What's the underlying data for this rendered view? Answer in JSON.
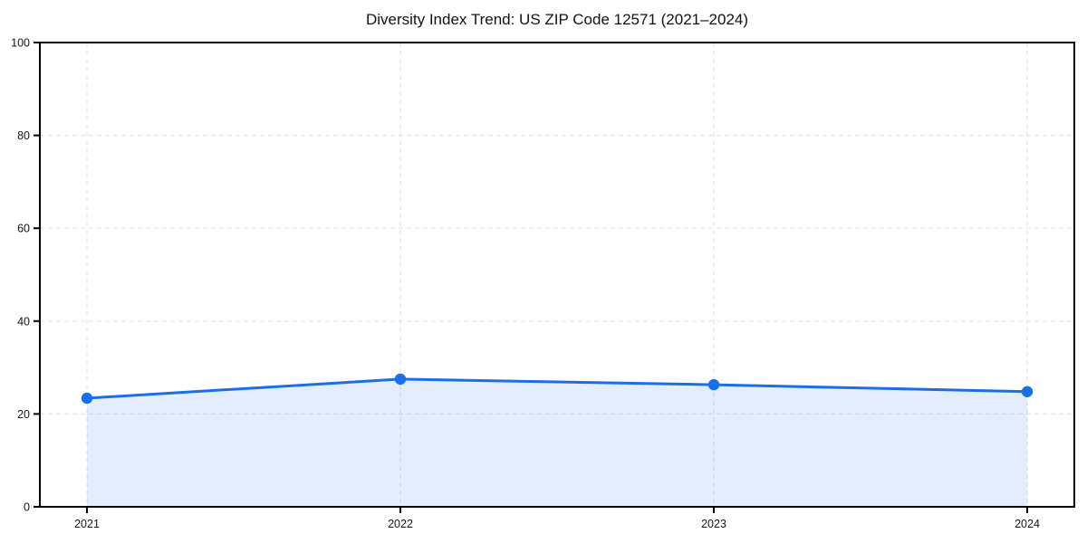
{
  "chart_data": {
    "type": "line",
    "title": "Diversity Index Trend: US ZIP Code 12571 (2021–2024)",
    "x": [
      "2021",
      "2022",
      "2023",
      "2024"
    ],
    "series": [
      {
        "name": "Diversity Index",
        "values": [
          23.4,
          27.5,
          26.3,
          24.8
        ]
      }
    ],
    "xlabel": "",
    "ylabel": "",
    "ylim": [
      0,
      100
    ],
    "yticks": [
      0,
      20,
      40,
      60,
      80,
      100
    ],
    "grid": "dashed-both-axes",
    "legend_position": "none",
    "line_color": "#1a6ee8",
    "fill_color": "rgba(26,110,232,0.12)",
    "marker": "circle",
    "area_fill_extent": "between-first-and-last-point"
  }
}
